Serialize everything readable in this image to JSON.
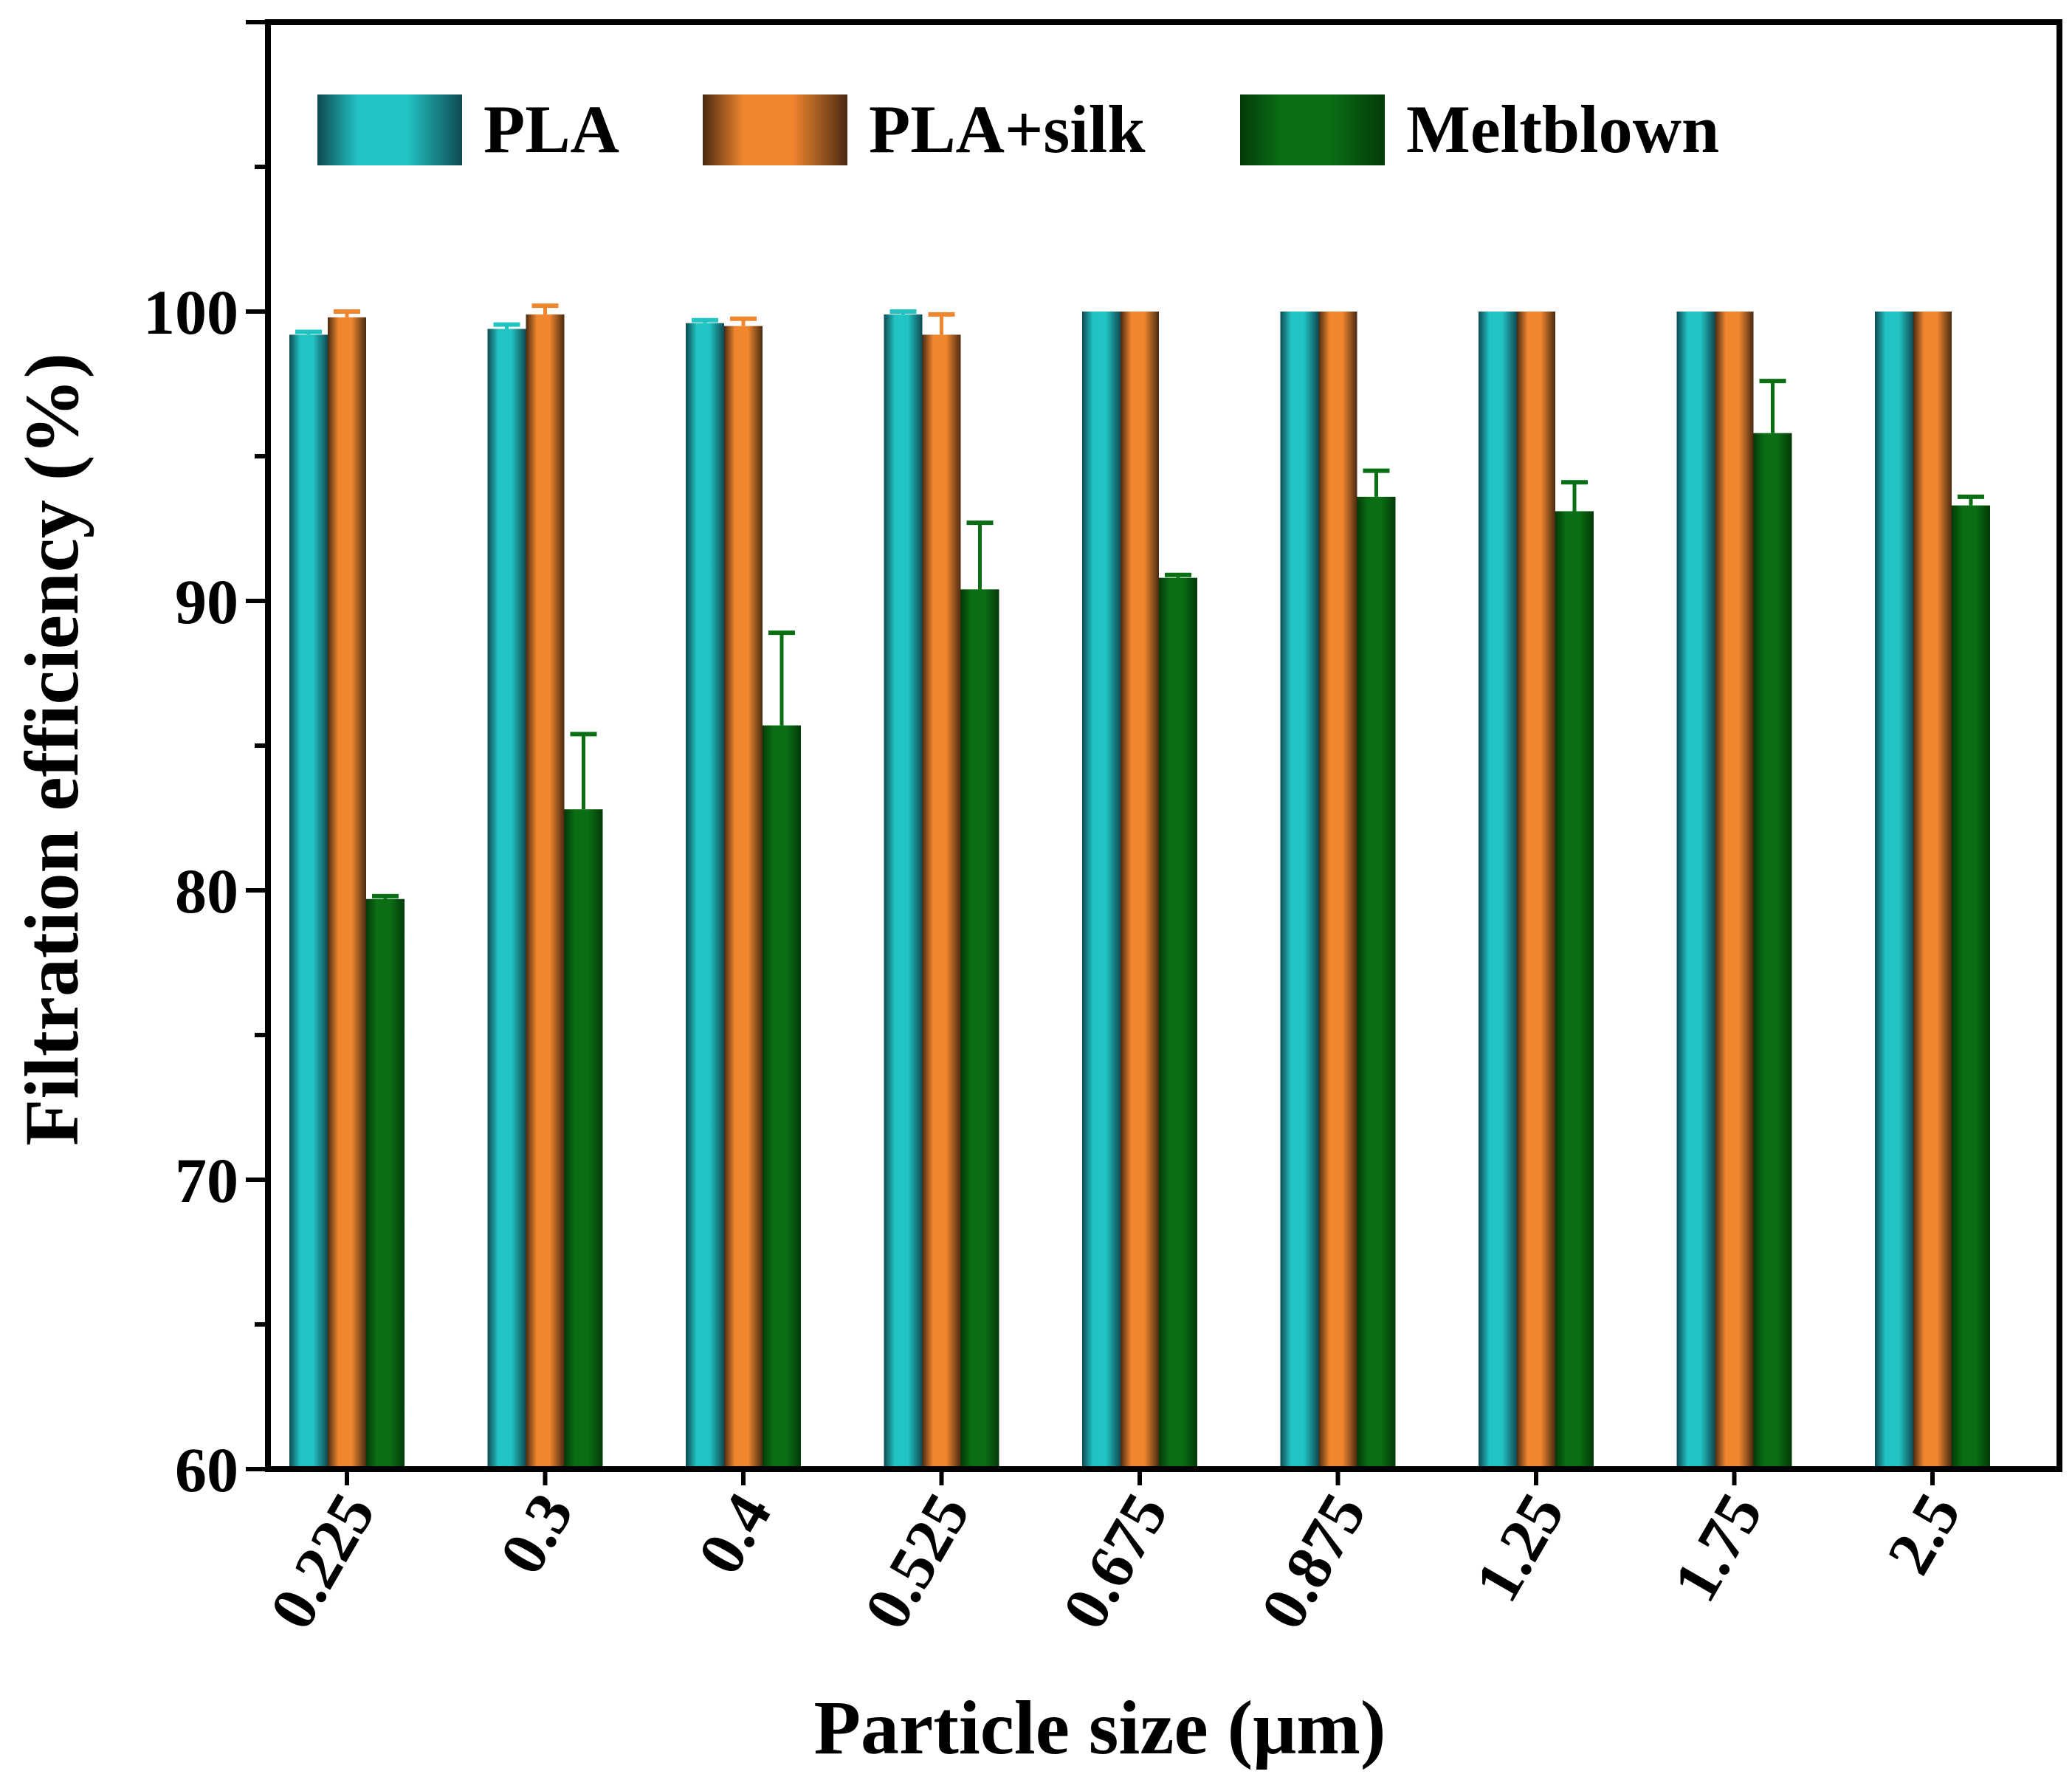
{
  "chart_data": {
    "type": "bar",
    "title": "",
    "xlabel": "Particle size (μm)",
    "ylabel": "Filtration efficiency (%)",
    "ylim": [
      60,
      110
    ],
    "yticks": [
      "60",
      "70",
      "80",
      "90",
      "100"
    ],
    "categories": [
      "0.225",
      "0.3",
      "0.4",
      "0.525",
      "0.675",
      "0.875",
      "1.25",
      "1.75",
      "2.5"
    ],
    "legend_position": "top",
    "series": [
      {
        "name": "PLA",
        "color": "#22c3c3",
        "edge_color": "#0e4a52",
        "values": [
          99.2,
          99.4,
          99.6,
          99.9,
          100,
          100,
          100,
          100,
          100
        ],
        "errors": [
          0.1,
          0.15,
          0.1,
          0.1,
          0,
          0,
          0,
          0,
          0
        ]
      },
      {
        "name": "PLA+silk",
        "color": "#f0862e",
        "edge_color": "#4a2a12",
        "values": [
          99.8,
          99.9,
          99.5,
          99.2,
          100,
          100,
          100,
          100,
          100
        ],
        "errors": [
          0.2,
          0.3,
          0.25,
          0.7,
          0,
          0,
          0,
          0,
          0
        ]
      },
      {
        "name": "Meltblown",
        "color": "#0a6e14",
        "edge_color": "#033a08",
        "values": [
          79.7,
          82.8,
          85.7,
          90.4,
          90.8,
          93.6,
          93.1,
          95.8,
          93.3
        ],
        "errors": [
          0.1,
          2.6,
          3.2,
          2.3,
          0.1,
          0.9,
          1.0,
          1.8,
          0.3
        ]
      }
    ]
  }
}
